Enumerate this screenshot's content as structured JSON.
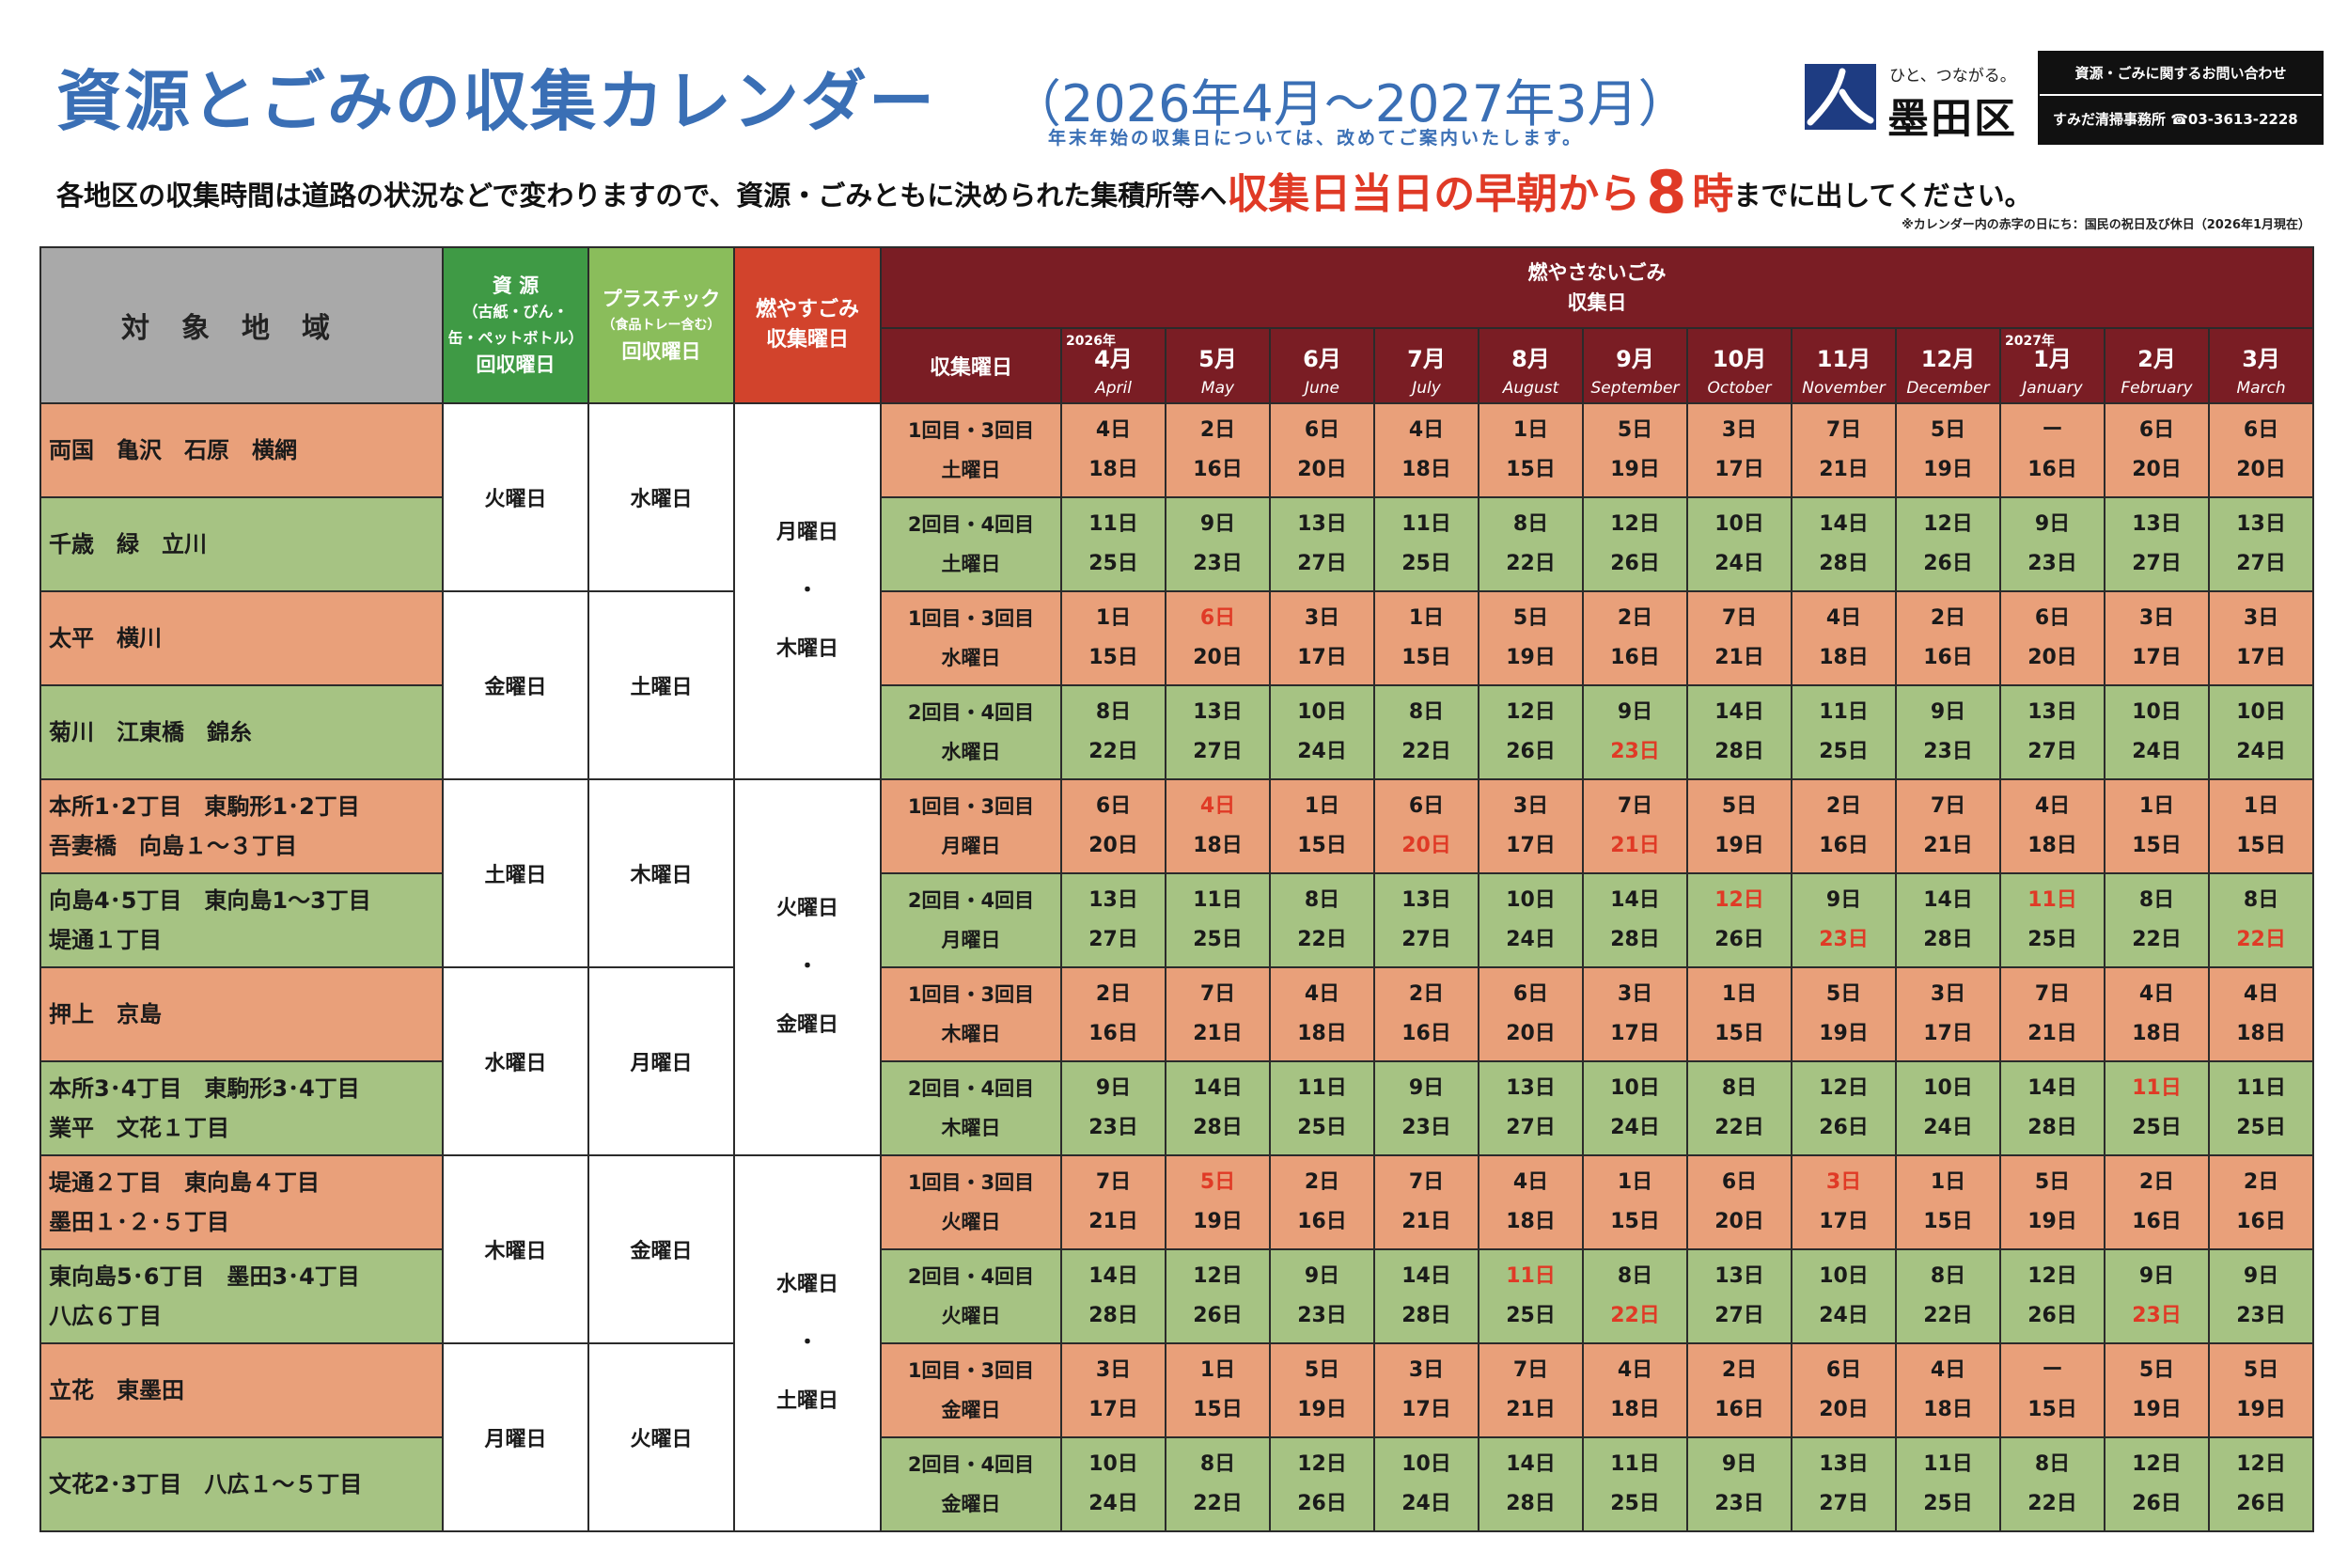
{
  "header": {
    "title": "資源とごみの収集カレンダー",
    "period": "（2026年4月〜2027年3月）",
    "note": "年末年始の収集日については、改めてご案内いたします。",
    "logo_tagline": "ひと、つながる。",
    "logo_name": "墨田区",
    "contact_title": "資源・ごみに関するお問い合わせ",
    "contact_line": "すみだ清掃事務所 ☎03-3613-2228",
    "subline_a": "各地区の収集時間は道路の状況などで変わりますので、資源・ごみともに決められた集積所等へ",
    "subline_b": "収集日当日の早朝から",
    "subline_c": "8",
    "subline_d": "時",
    "subline_e": "までに出してください。",
    "fine_print": "※カレンダー内の赤字の日にち：国民の祝日及び休日（2026年1月現在）"
  },
  "table_header": {
    "area": "対象地域",
    "resource_title": "資 源",
    "resource_sub1": "（古紙・びん・",
    "resource_sub2": "缶・ペットボトル）",
    "resource_tail": "回収曜日",
    "plastic_title": "プラスチック",
    "plastic_sub": "（食品トレー含む）",
    "plastic_tail": "回収曜日",
    "burn_title": "燃やすごみ",
    "burn_tail": "収集曜日",
    "nonburn_title": "燃やさないごみ",
    "nonburn_tail": "収集日",
    "weekday_col": "収集曜日",
    "year1": "2026年",
    "year2": "2027年",
    "months": [
      {
        "jp": "4月",
        "en": "April"
      },
      {
        "jp": "5月",
        "en": "May"
      },
      {
        "jp": "6月",
        "en": "June"
      },
      {
        "jp": "7月",
        "en": "July"
      },
      {
        "jp": "8月",
        "en": "August"
      },
      {
        "jp": "9月",
        "en": "September"
      },
      {
        "jp": "10月",
        "en": "October"
      },
      {
        "jp": "11月",
        "en": "November"
      },
      {
        "jp": "12月",
        "en": "December"
      },
      {
        "jp": "1月",
        "en": "January"
      },
      {
        "jp": "2月",
        "en": "February"
      },
      {
        "jp": "3月",
        "en": "March"
      }
    ]
  },
  "resource_days": [
    "火曜日",
    "金曜日",
    "土曜日",
    "水曜日",
    "木曜日",
    "月曜日"
  ],
  "plastic_days": [
    "水曜日",
    "土曜日",
    "木曜日",
    "月曜日",
    "金曜日",
    "火曜日"
  ],
  "burn_groups": [
    {
      "top": "月曜日",
      "dot": "・",
      "bottom": "木曜日"
    },
    {
      "top": "火曜日",
      "dot": "・",
      "bottom": "金曜日"
    },
    {
      "top": "水曜日",
      "dot": "・",
      "bottom": "土曜日"
    }
  ],
  "rows": [
    {
      "area1": "両国　亀沢　石原　横網",
      "area2": "",
      "wk1": "1回目・3回目",
      "wk2": "土曜日",
      "color": "o",
      "d1": [
        "4日",
        "2日",
        "6日",
        "4日",
        "1日",
        "5日",
        "3日",
        "7日",
        "5日",
        "ー",
        "6日",
        "6日"
      ],
      "d2": [
        "18日",
        "16日",
        "20日",
        "18日",
        "15日",
        "19日",
        "17日",
        "21日",
        "19日",
        "16日",
        "20日",
        "20日"
      ],
      "r1": [],
      "r2": []
    },
    {
      "area1": "千歳　緑　立川",
      "area2": "",
      "wk1": "2回目・4回目",
      "wk2": "土曜日",
      "color": "g",
      "d1": [
        "11日",
        "9日",
        "13日",
        "11日",
        "8日",
        "12日",
        "10日",
        "14日",
        "12日",
        "9日",
        "13日",
        "13日"
      ],
      "d2": [
        "25日",
        "23日",
        "27日",
        "25日",
        "22日",
        "26日",
        "24日",
        "28日",
        "26日",
        "23日",
        "27日",
        "27日"
      ],
      "r1": [],
      "r2": []
    },
    {
      "area1": "太平　横川",
      "area2": "",
      "wk1": "1回目・3回目",
      "wk2": "水曜日",
      "color": "o",
      "d1": [
        "1日",
        "6日",
        "3日",
        "1日",
        "5日",
        "2日",
        "7日",
        "4日",
        "2日",
        "6日",
        "3日",
        "3日"
      ],
      "d2": [
        "15日",
        "20日",
        "17日",
        "15日",
        "19日",
        "16日",
        "21日",
        "18日",
        "16日",
        "20日",
        "17日",
        "17日"
      ],
      "r1": [
        1
      ],
      "r2": []
    },
    {
      "area1": "菊川　江東橋　錦糸",
      "area2": "",
      "wk1": "2回目・4回目",
      "wk2": "水曜日",
      "color": "g",
      "d1": [
        "8日",
        "13日",
        "10日",
        "8日",
        "12日",
        "9日",
        "14日",
        "11日",
        "9日",
        "13日",
        "10日",
        "10日"
      ],
      "d2": [
        "22日",
        "27日",
        "24日",
        "22日",
        "26日",
        "23日",
        "28日",
        "25日",
        "23日",
        "27日",
        "24日",
        "24日"
      ],
      "r1": [],
      "r2": [
        5
      ]
    },
    {
      "area1": "本所1･2丁目　東駒形1･2丁目",
      "area2": "吾妻橋　向島１〜３丁目",
      "wk1": "1回目・3回目",
      "wk2": "月曜日",
      "color": "o",
      "d1": [
        "6日",
        "4日",
        "1日",
        "6日",
        "3日",
        "7日",
        "5日",
        "2日",
        "7日",
        "4日",
        "1日",
        "1日"
      ],
      "d2": [
        "20日",
        "18日",
        "15日",
        "20日",
        "17日",
        "21日",
        "19日",
        "16日",
        "21日",
        "18日",
        "15日",
        "15日"
      ],
      "r1": [
        1
      ],
      "r2": [
        3,
        5
      ]
    },
    {
      "area1": "向島4･5丁目　東向島1〜3丁目",
      "area2": "堤通１丁目",
      "wk1": "2回目・4回目",
      "wk2": "月曜日",
      "color": "g",
      "d1": [
        "13日",
        "11日",
        "8日",
        "13日",
        "10日",
        "14日",
        "12日",
        "9日",
        "14日",
        "11日",
        "8日",
        "8日"
      ],
      "d2": [
        "27日",
        "25日",
        "22日",
        "27日",
        "24日",
        "28日",
        "26日",
        "23日",
        "28日",
        "25日",
        "22日",
        "22日"
      ],
      "r1": [
        6,
        9
      ],
      "r2": [
        7,
        11
      ]
    },
    {
      "area1": "押上　京島",
      "area2": "",
      "wk1": "1回目・3回目",
      "wk2": "木曜日",
      "color": "o",
      "d1": [
        "2日",
        "7日",
        "4日",
        "2日",
        "6日",
        "3日",
        "1日",
        "5日",
        "3日",
        "7日",
        "4日",
        "4日"
      ],
      "d2": [
        "16日",
        "21日",
        "18日",
        "16日",
        "20日",
        "17日",
        "15日",
        "19日",
        "17日",
        "21日",
        "18日",
        "18日"
      ],
      "r1": [],
      "r2": []
    },
    {
      "area1": "本所3･4丁目　東駒形3･4丁目",
      "area2": "業平　文花１丁目",
      "wk1": "2回目・4回目",
      "wk2": "木曜日",
      "color": "g",
      "d1": [
        "9日",
        "14日",
        "11日",
        "9日",
        "13日",
        "10日",
        "8日",
        "12日",
        "10日",
        "14日",
        "11日",
        "11日"
      ],
      "d2": [
        "23日",
        "28日",
        "25日",
        "23日",
        "27日",
        "24日",
        "22日",
        "26日",
        "24日",
        "28日",
        "25日",
        "25日"
      ],
      "r1": [
        10
      ],
      "r2": []
    },
    {
      "area1": "堤通２丁目　東向島４丁目",
      "area2": "墨田１･２･５丁目",
      "wk1": "1回目・3回目",
      "wk2": "火曜日",
      "color": "o",
      "d1": [
        "7日",
        "5日",
        "2日",
        "7日",
        "4日",
        "1日",
        "6日",
        "3日",
        "1日",
        "5日",
        "2日",
        "2日"
      ],
      "d2": [
        "21日",
        "19日",
        "16日",
        "21日",
        "18日",
        "15日",
        "20日",
        "17日",
        "15日",
        "19日",
        "16日",
        "16日"
      ],
      "r1": [
        1,
        7
      ],
      "r2": []
    },
    {
      "area1": "東向島5･6丁目　墨田3･4丁目",
      "area2": "八広６丁目",
      "wk1": "2回目・4回目",
      "wk2": "火曜日",
      "color": "g",
      "d1": [
        "14日",
        "12日",
        "9日",
        "14日",
        "11日",
        "8日",
        "13日",
        "10日",
        "8日",
        "12日",
        "9日",
        "9日"
      ],
      "d2": [
        "28日",
        "26日",
        "23日",
        "28日",
        "25日",
        "22日",
        "27日",
        "24日",
        "22日",
        "26日",
        "23日",
        "23日"
      ],
      "r1": [
        4
      ],
      "r2": [
        5,
        10
      ]
    },
    {
      "area1": "立花　東墨田",
      "area2": "",
      "wk1": "1回目・3回目",
      "wk2": "金曜日",
      "color": "o",
      "d1": [
        "3日",
        "1日",
        "5日",
        "3日",
        "7日",
        "4日",
        "2日",
        "6日",
        "4日",
        "ー",
        "5日",
        "5日"
      ],
      "d2": [
        "17日",
        "15日",
        "19日",
        "17日",
        "21日",
        "18日",
        "16日",
        "20日",
        "18日",
        "15日",
        "19日",
        "19日"
      ],
      "r1": [],
      "r2": []
    },
    {
      "area1": "文花2･3丁目　八広１〜５丁目",
      "area2": "",
      "wk1": "2回目・4回目",
      "wk2": "金曜日",
      "color": "g",
      "d1": [
        "10日",
        "8日",
        "12日",
        "10日",
        "14日",
        "11日",
        "9日",
        "13日",
        "11日",
        "8日",
        "12日",
        "12日"
      ],
      "d2": [
        "24日",
        "22日",
        "26日",
        "24日",
        "28日",
        "25日",
        "23日",
        "27日",
        "25日",
        "22日",
        "26日",
        "26日"
      ],
      "r1": [],
      "r2": []
    }
  ],
  "colors": {
    "title": "#3a6fb5",
    "accent_red": "#e03a26",
    "orange_row": "#e9a07a",
    "green_row": "#a6c383",
    "header_maroon": "#7a1d24"
  }
}
